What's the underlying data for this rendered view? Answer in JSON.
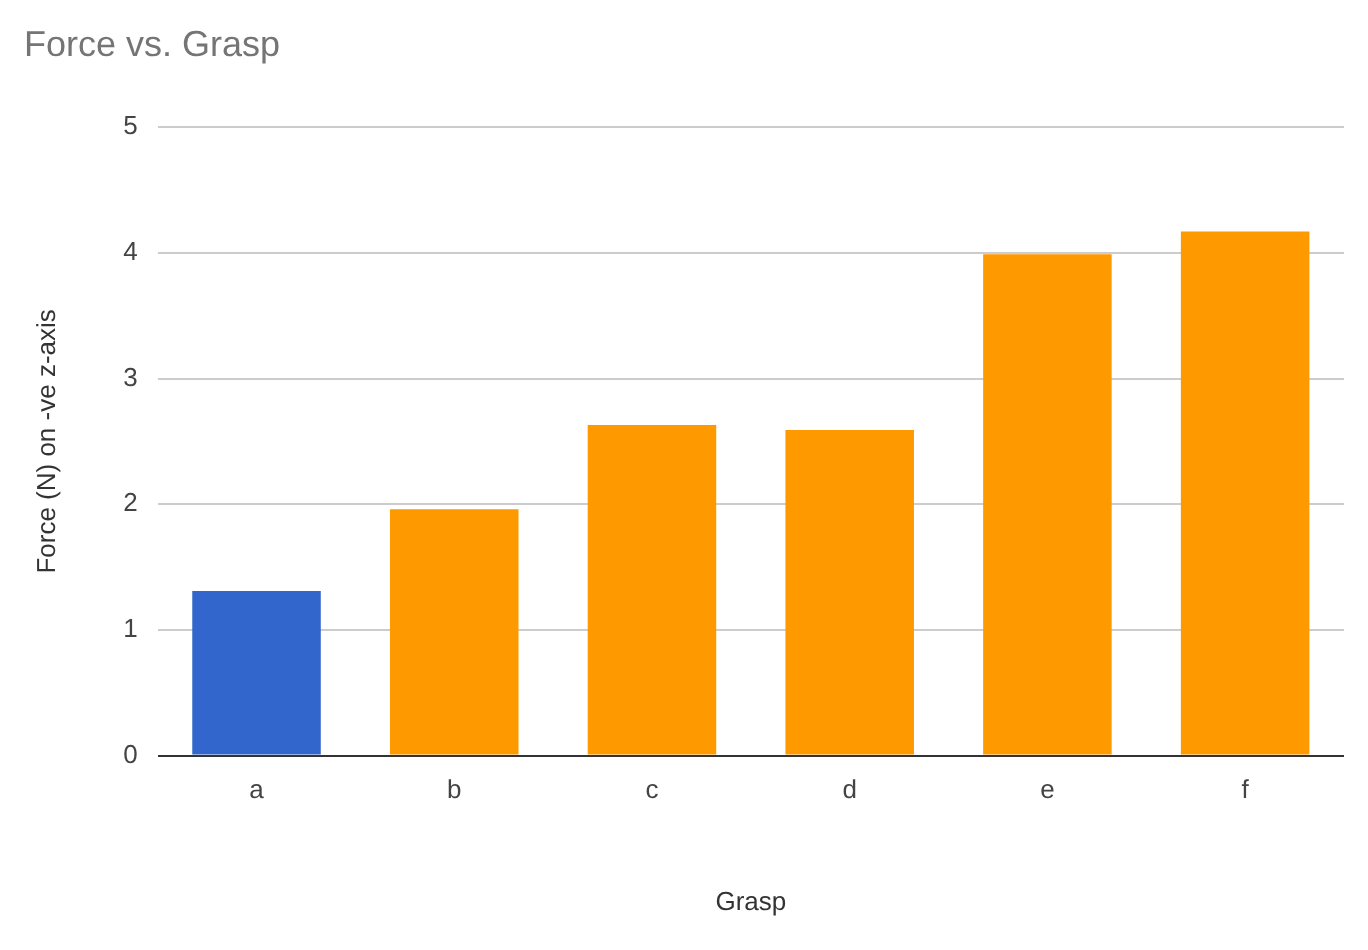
{
  "chart_data": {
    "type": "bar",
    "title": "Force vs. Grasp",
    "xlabel": "Grasp",
    "ylabel": "Force (N) on -ve z-axis",
    "categories": [
      "a",
      "b",
      "c",
      "d",
      "e",
      "f"
    ],
    "values": [
      1.31,
      1.96,
      2.63,
      2.59,
      3.99,
      4.17
    ],
    "colors": [
      "#3366cc",
      "#ff9900",
      "#ff9900",
      "#ff9900",
      "#ff9900",
      "#ff9900"
    ],
    "ylim": [
      0,
      5
    ],
    "yticks": [
      0,
      1,
      2,
      3,
      4,
      5
    ],
    "grid": "y",
    "legend": false
  }
}
